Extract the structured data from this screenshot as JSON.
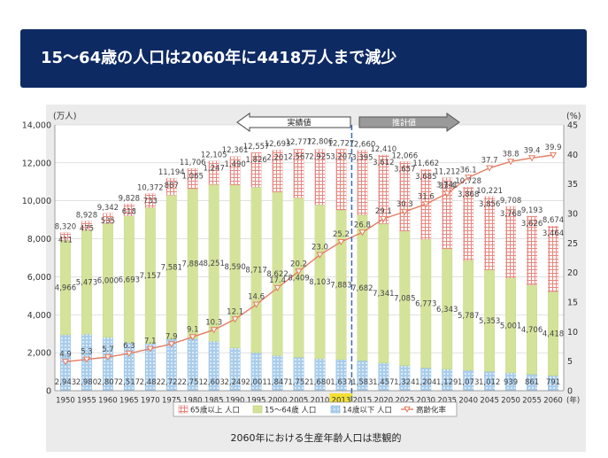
{
  "banner": {
    "title": "15〜64歳の人口は2060年に4418万人まで減少"
  },
  "caption": "2060年における生産年齢人口は悲観的",
  "colors": {
    "banner_bg": "#0e2a63",
    "elderly": "#e8867e",
    "working": "#d4e39a",
    "young": "#a9cdeb",
    "ratio_line": "#e57c62",
    "divider": "#3a6cb6",
    "highlight_year": "#f3e033"
  },
  "chart_data": {
    "type": "bar",
    "stacked": true,
    "left_unit": "(万人)",
    "right_unit": "(%)",
    "x_suffix": "(年)",
    "highlight_category": "2013",
    "actual_label": "実績値",
    "estimate_label": "推計値",
    "ylim": [
      0,
      14000
    ],
    "y_ticks": [
      "0",
      "2,000",
      "4,000",
      "6,000",
      "8,000",
      "10,000",
      "12,000",
      "14,000"
    ],
    "y2lim": [
      0,
      45
    ],
    "y2_ticks": [
      "0",
      "5",
      "10",
      "15",
      "20",
      "25",
      "30",
      "35",
      "40",
      "45"
    ],
    "categories": [
      "1950",
      "1955",
      "1960",
      "1965",
      "1970",
      "1975",
      "1980",
      "1985",
      "1990",
      "1995",
      "2000",
      "2005",
      "2010",
      "2013",
      "2015",
      "2020",
      "2025",
      "2030",
      "2035",
      "2040",
      "2045",
      "2050",
      "2055",
      "2060"
    ],
    "legend": [
      "65歳以上 人口",
      "15〜64歳 人口",
      "14歳以下 人口",
      "高齢化率"
    ],
    "series": [
      {
        "name": "14歳以下 人口",
        "values": [
          2943,
          2980,
          2807,
          2517,
          2482,
          2722,
          2751,
          2603,
          2249,
          2001,
          1847,
          1752,
          1680,
          1637,
          1583,
          1457,
          1324,
          1204,
          1129,
          1073,
          1012,
          939,
          861,
          791
        ],
        "labels": [
          "2,943",
          "2,980",
          "2,807",
          "2,517",
          "2,482",
          "2,722",
          "2,751",
          "2,603",
          "2,249",
          "2,001",
          "1,847",
          "1,752",
          "1,680",
          "1,637",
          "1,583",
          "1,457",
          "1,324",
          "1,204",
          "1,129",
          "1,073",
          "1,012",
          "939",
          "861",
          "791"
        ]
      },
      {
        "name": "15〜64歳 人口",
        "values": [
          4966,
          5473,
          6000,
          6693,
          7157,
          7581,
          7884,
          8251,
          8590,
          8717,
          8622,
          8409,
          8103,
          7883,
          7682,
          7341,
          7085,
          6773,
          6343,
          5787,
          5353,
          5001,
          4706,
          4418
        ],
        "labels": [
          "4,966",
          "5,473",
          "6,000",
          "6,693",
          "7,157",
          "7,581",
          "7,884",
          "8,251",
          "8,590",
          "8,717",
          "8,622",
          "8,409",
          "8,103",
          "7,883",
          "7,682",
          "7,341",
          "7,085",
          "6,773",
          "6,343",
          "5,787",
          "5,353",
          "5,001",
          "4,706",
          "4,418"
        ]
      },
      {
        "name": "65歳以上 人口",
        "values": [
          411,
          475,
          535,
          618,
          733,
          887,
          1065,
          1247,
          1490,
          1826,
          2201,
          2567,
          2925,
          3207,
          3395,
          3612,
          3657,
          3685,
          3741,
          3868,
          3856,
          3768,
          3626,
          3464
        ],
        "labels": [
          "411",
          "475",
          "535",
          "618",
          "733",
          "887",
          "1,065",
          "1,247",
          "1,490",
          "1,826",
          "2,201",
          "2,567",
          "2,925",
          "3,207",
          "3,395",
          "3,612",
          "3,657",
          "3,685",
          "3,741",
          "3,868",
          "3,856",
          "3,768",
          "3,626",
          "3,464"
        ]
      },
      {
        "name": "高齢化率",
        "axis": "right",
        "values": [
          4.9,
          5.3,
          5.7,
          6.3,
          7.1,
          7.9,
          9.1,
          10.3,
          12.1,
          14.6,
          17.4,
          20.2,
          23.0,
          25.2,
          26.8,
          29.1,
          30.3,
          31.6,
          33.4,
          36.1,
          37.7,
          38.8,
          39.4,
          39.9
        ],
        "labels": [
          "4.9",
          "5.3",
          "5.7",
          "6.3",
          "7.1",
          "7.9",
          "9.1",
          "10.3",
          "12.1",
          "14.6",
          "17.4",
          "20.2",
          "23.0",
          "25.2",
          "26.8",
          "29.1",
          "30.3",
          "31.6",
          "33.4",
          "36.1",
          "37.7",
          "38.8",
          "39.4",
          "39.9"
        ]
      }
    ],
    "totals": [
      8320,
      8928,
      9342,
      9828,
      10372,
      11194,
      11706,
      12105,
      12361,
      12557,
      12693,
      12777,
      12806,
      12727,
      12660,
      12410,
      12066,
      11662,
      11212,
      10728,
      10221,
      9708,
      9193,
      8674
    ],
    "total_labels": [
      "8,320",
      "8,928",
      "9,342",
      "9,828",
      "10,372",
      "11,194",
      "11,706",
      "12,105",
      "12,361",
      "12,557",
      "12,693",
      "12,777",
      "12,806",
      "12,727",
      "12,660",
      "12,410",
      "12,066",
      "11,662",
      "11,212",
      "10,728",
      "10,221",
      "9,708",
      "9,193",
      "8,674"
    ]
  }
}
